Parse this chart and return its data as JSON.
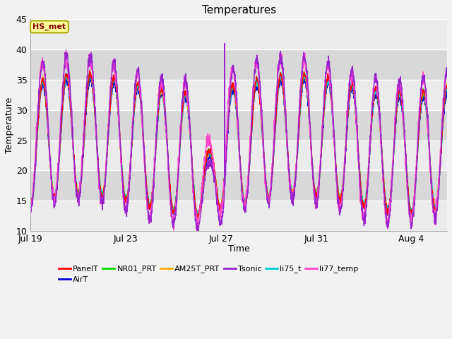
{
  "title": "Temperatures",
  "xlabel": "Time",
  "ylabel": "Temperature",
  "ylim": [
    10,
    45
  ],
  "yticks": [
    10,
    15,
    20,
    25,
    30,
    35,
    40,
    45
  ],
  "xtick_labels": [
    "Jul 19",
    "Jul 23",
    "Jul 27",
    "Jul 31",
    "Aug 4"
  ],
  "xtick_positions": [
    0,
    4,
    8,
    12,
    16
  ],
  "annotation_label": "HS_met",
  "series_names": [
    "PanelT",
    "AirT",
    "NR01_PRT",
    "AM25T_PRT",
    "Tsonic",
    "li75_t",
    "li77_temp"
  ],
  "series_colors": [
    "#ff0000",
    "#0000dd",
    "#00dd00",
    "#ffaa00",
    "#9922cc",
    "#00cccc",
    "#ff44cc"
  ],
  "figsize": [
    6.4,
    4.8
  ],
  "dpi": 100,
  "background_color": "#f2f2f2",
  "plot_bg_light": "#ebebeb",
  "plot_bg_dark": "#d8d8d8",
  "grid_color": "#ffffff",
  "num_points": 2000,
  "seed": 42,
  "total_days": 17.5
}
